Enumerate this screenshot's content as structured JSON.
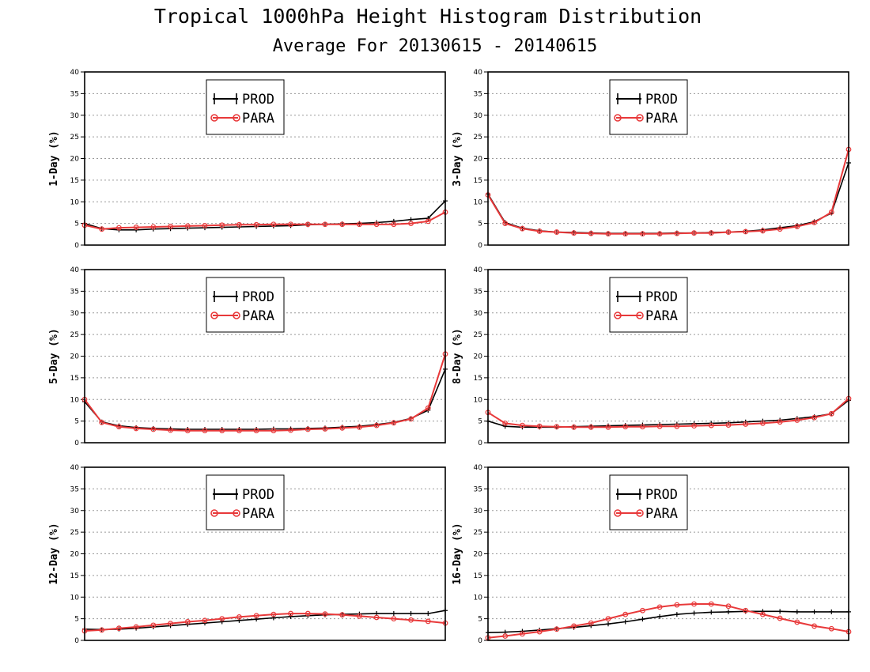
{
  "title": "Tropical 1000hPa Height Histogram Distribution",
  "subtitle": "Average For 20130615 - 20140615",
  "colors": {
    "PROD": "#000000",
    "PARA": "#e8393a"
  },
  "legend": [
    "PROD",
    "PARA"
  ],
  "chart_data": [
    {
      "type": "line",
      "ylabel": "1-Day (%)",
      "ylim": [
        0,
        40
      ],
      "yticks": [
        0,
        5,
        10,
        15,
        20,
        25,
        30,
        35,
        40
      ],
      "grid": true,
      "legend_position": "top-center",
      "series": [
        {
          "name": "PROD",
          "marker": "plus",
          "values": [
            5.0,
            3.8,
            3.5,
            3.5,
            3.7,
            3.8,
            3.9,
            4.0,
            4.1,
            4.2,
            4.3,
            4.4,
            4.5,
            4.7,
            4.8,
            4.9,
            5.0,
            5.2,
            5.5,
            5.9,
            6.2,
            10.2
          ]
        },
        {
          "name": "PARA",
          "marker": "circle",
          "values": [
            4.6,
            3.7,
            4.0,
            4.1,
            4.2,
            4.3,
            4.4,
            4.5,
            4.6,
            4.7,
            4.7,
            4.8,
            4.8,
            4.8,
            4.8,
            4.8,
            4.8,
            4.8,
            4.8,
            5.0,
            5.5,
            7.6
          ]
        }
      ]
    },
    {
      "type": "line",
      "ylabel": "3-Day (%)",
      "ylim": [
        0,
        40
      ],
      "yticks": [
        0,
        5,
        10,
        15,
        20,
        25,
        30,
        35,
        40
      ],
      "grid": true,
      "legend_position": "top-center",
      "series": [
        {
          "name": "PROD",
          "marker": "plus",
          "values": [
            11.8,
            5.2,
            3.9,
            3.3,
            3.0,
            2.9,
            2.8,
            2.7,
            2.7,
            2.7,
            2.7,
            2.8,
            2.8,
            2.9,
            3.0,
            3.2,
            3.5,
            4.0,
            4.5,
            5.4,
            7.4,
            19.0
          ]
        },
        {
          "name": "PARA",
          "marker": "circle",
          "values": [
            11.6,
            5.0,
            3.8,
            3.2,
            3.0,
            2.8,
            2.7,
            2.6,
            2.6,
            2.6,
            2.6,
            2.7,
            2.8,
            2.8,
            3.0,
            3.1,
            3.3,
            3.7,
            4.3,
            5.2,
            7.6,
            22.1
          ]
        }
      ]
    },
    {
      "type": "line",
      "ylabel": "5-Day (%)",
      "ylim": [
        0,
        40
      ],
      "yticks": [
        0,
        5,
        10,
        15,
        20,
        25,
        30,
        35,
        40
      ],
      "grid": true,
      "legend_position": "top-center",
      "series": [
        {
          "name": "PROD",
          "marker": "plus",
          "values": [
            9.5,
            4.8,
            3.9,
            3.5,
            3.3,
            3.2,
            3.1,
            3.1,
            3.1,
            3.1,
            3.1,
            3.2,
            3.2,
            3.3,
            3.4,
            3.6,
            3.8,
            4.2,
            4.7,
            5.6,
            7.5,
            17.0
          ]
        },
        {
          "name": "PARA",
          "marker": "circle",
          "values": [
            10.0,
            4.7,
            3.7,
            3.3,
            3.1,
            2.9,
            2.8,
            2.8,
            2.8,
            2.8,
            2.8,
            2.8,
            2.9,
            3.1,
            3.2,
            3.4,
            3.6,
            4.0,
            4.6,
            5.5,
            8.0,
            20.5
          ]
        }
      ]
    },
    {
      "type": "line",
      "ylabel": "8-Day (%)",
      "ylim": [
        0,
        40
      ],
      "yticks": [
        0,
        5,
        10,
        15,
        20,
        25,
        30,
        35,
        40
      ],
      "grid": true,
      "legend_position": "top-center",
      "series": [
        {
          "name": "PROD",
          "marker": "plus",
          "values": [
            5.0,
            3.8,
            3.6,
            3.6,
            3.6,
            3.7,
            3.8,
            3.9,
            4.0,
            4.1,
            4.2,
            4.3,
            4.4,
            4.5,
            4.6,
            4.8,
            5.0,
            5.2,
            5.6,
            6.0,
            6.7,
            9.8
          ]
        },
        {
          "name": "PARA",
          "marker": "circle",
          "values": [
            7.0,
            4.5,
            4.0,
            3.8,
            3.7,
            3.6,
            3.6,
            3.6,
            3.7,
            3.7,
            3.8,
            3.8,
            3.9,
            4.0,
            4.1,
            4.3,
            4.5,
            4.8,
            5.2,
            5.8,
            6.7,
            10.2
          ]
        }
      ]
    },
    {
      "type": "line",
      "ylabel": "12-Day (%)",
      "ylim": [
        0,
        40
      ],
      "yticks": [
        0,
        5,
        10,
        15,
        20,
        25,
        30,
        35,
        40
      ],
      "grid": true,
      "legend_position": "top-center",
      "series": [
        {
          "name": "PROD",
          "marker": "plus",
          "values": [
            2.6,
            2.5,
            2.6,
            2.8,
            3.1,
            3.4,
            3.7,
            4.0,
            4.3,
            4.6,
            4.9,
            5.2,
            5.5,
            5.7,
            5.9,
            6.0,
            6.1,
            6.2,
            6.2,
            6.2,
            6.2,
            6.9
          ]
        },
        {
          "name": "PARA",
          "marker": "circle",
          "values": [
            2.2,
            2.4,
            2.8,
            3.1,
            3.5,
            3.9,
            4.3,
            4.6,
            5.0,
            5.4,
            5.7,
            6.0,
            6.2,
            6.2,
            6.1,
            5.9,
            5.6,
            5.3,
            5.0,
            4.7,
            4.4,
            4.0
          ]
        }
      ]
    },
    {
      "type": "line",
      "ylabel": "16-Day (%)",
      "ylim": [
        0,
        40
      ],
      "yticks": [
        0,
        5,
        10,
        15,
        20,
        25,
        30,
        35,
        40
      ],
      "grid": true,
      "legend_position": "top-center",
      "series": [
        {
          "name": "PROD",
          "marker": "plus",
          "values": [
            1.8,
            1.9,
            2.1,
            2.4,
            2.7,
            3.0,
            3.4,
            3.8,
            4.3,
            4.9,
            5.5,
            6.0,
            6.3,
            6.5,
            6.6,
            6.7,
            6.7,
            6.7,
            6.6,
            6.6,
            6.6,
            6.6
          ]
        },
        {
          "name": "PARA",
          "marker": "circle",
          "values": [
            0.6,
            1.0,
            1.5,
            2.0,
            2.6,
            3.3,
            4.0,
            5.0,
            6.0,
            6.9,
            7.7,
            8.2,
            8.4,
            8.4,
            7.9,
            6.9,
            6.0,
            5.1,
            4.2,
            3.3,
            2.7,
            2.0
          ]
        }
      ]
    }
  ]
}
